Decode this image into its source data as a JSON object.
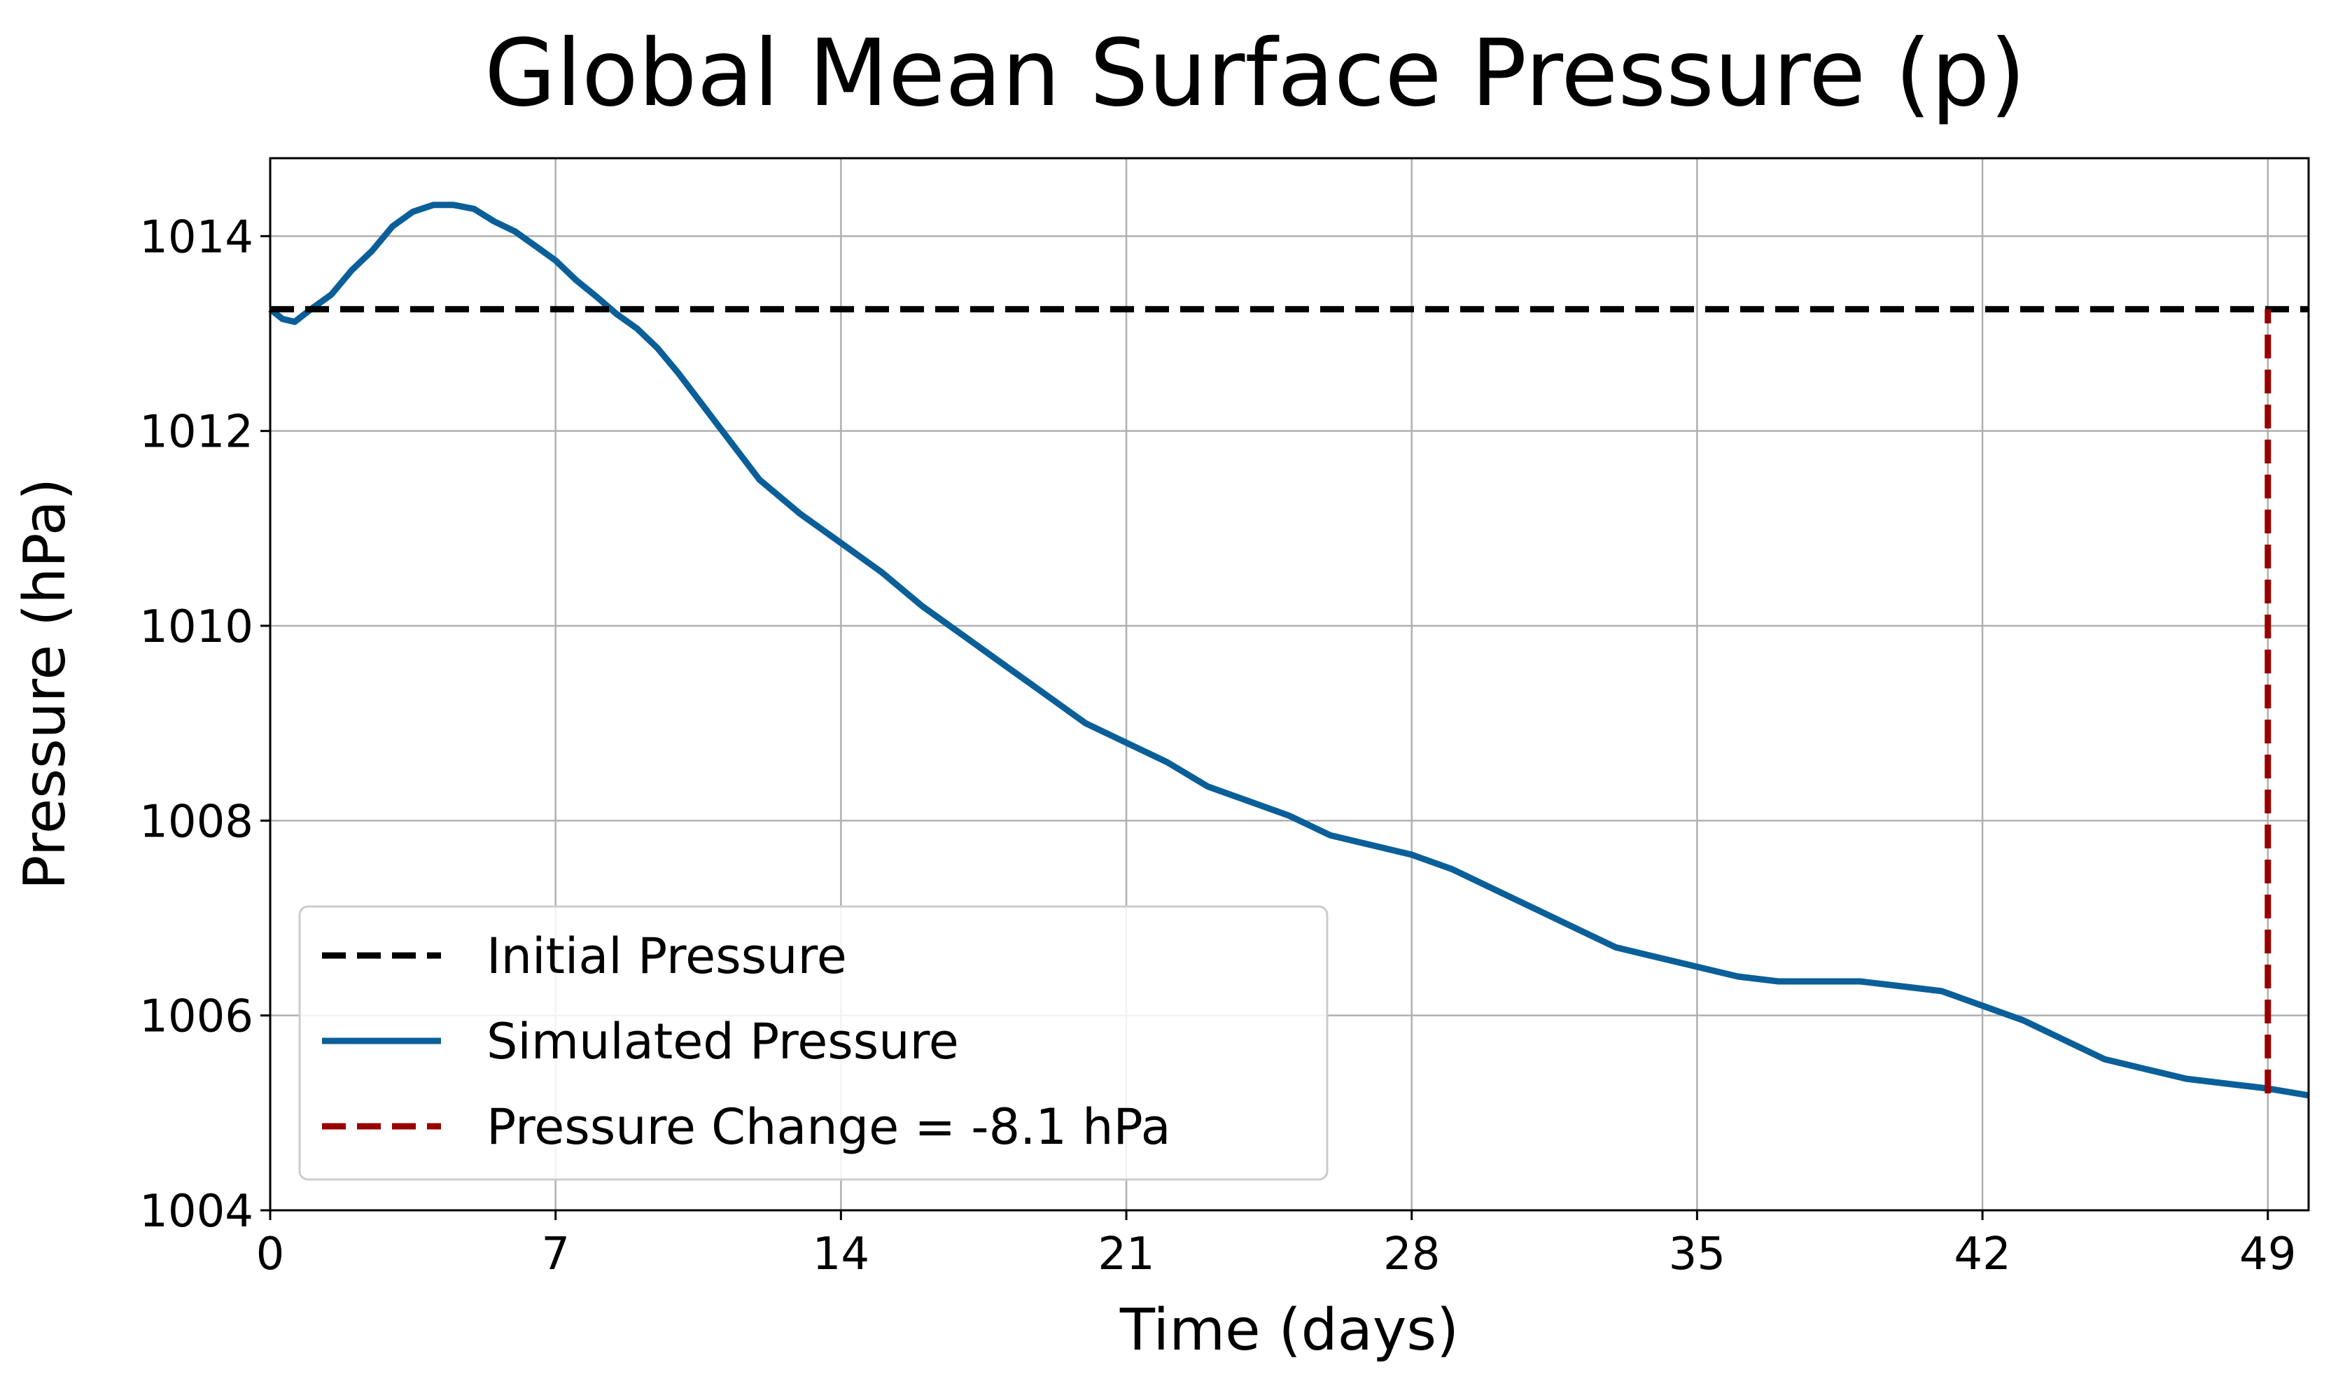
{
  "chart_data": {
    "type": "line",
    "title": "Global Mean Surface Pressure (p)",
    "xlabel": "Time (days)",
    "ylabel": "Pressure (hPa)",
    "xlim": [
      0,
      50
    ],
    "ylim": [
      1004,
      1014.8
    ],
    "x_ticks": [
      0,
      7,
      14,
      21,
      28,
      35,
      42,
      49
    ],
    "y_ticks": [
      1004,
      1006,
      1008,
      1010,
      1012,
      1014
    ],
    "grid": true,
    "legend_position": "lower-left",
    "series": [
      {
        "name": "Initial Pressure",
        "style": "dashed",
        "color": "#000000",
        "x": [
          0,
          50
        ],
        "y": [
          1013.25,
          1013.25
        ]
      },
      {
        "name": "Simulated Pressure",
        "style": "solid",
        "color": "#0a5f99",
        "x": [
          0,
          0.3,
          0.6,
          1,
          1.5,
          2,
          2.5,
          3,
          3.5,
          4,
          4.5,
          5,
          5.5,
          6,
          6.5,
          7,
          7.5,
          8,
          8.5,
          9,
          9.5,
          10,
          11,
          12,
          13,
          14,
          15,
          16,
          17,
          18,
          19,
          20,
          21,
          22,
          23,
          24,
          25,
          26,
          27,
          28,
          29,
          30,
          31,
          32,
          33,
          34,
          35,
          36,
          37,
          38,
          39,
          40,
          41,
          42,
          43,
          44,
          45,
          46,
          47,
          48,
          49,
          50
        ],
        "y": [
          1013.25,
          1013.15,
          1013.12,
          1013.25,
          1013.4,
          1013.65,
          1013.85,
          1014.1,
          1014.25,
          1014.32,
          1014.32,
          1014.28,
          1014.15,
          1014.05,
          1013.9,
          1013.75,
          1013.55,
          1013.38,
          1013.2,
          1013.05,
          1012.85,
          1012.6,
          1012.05,
          1011.5,
          1011.15,
          1010.85,
          1010.55,
          1010.2,
          1009.9,
          1009.6,
          1009.3,
          1009.0,
          1008.8,
          1008.6,
          1008.35,
          1008.2,
          1008.05,
          1007.85,
          1007.75,
          1007.65,
          1007.5,
          1007.3,
          1007.1,
          1006.9,
          1006.7,
          1006.6,
          1006.5,
          1006.4,
          1006.35,
          1006.35,
          1006.35,
          1006.3,
          1006.25,
          1006.1,
          1005.95,
          1005.75,
          1005.55,
          1005.45,
          1005.35,
          1005.3,
          1005.25,
          1005.18
        ]
      },
      {
        "name": "Pressure Change = -8.1 hPa",
        "style": "dashed",
        "color": "#990000",
        "x": [
          49,
          49
        ],
        "y": [
          1005.2,
          1013.25
        ]
      }
    ]
  }
}
